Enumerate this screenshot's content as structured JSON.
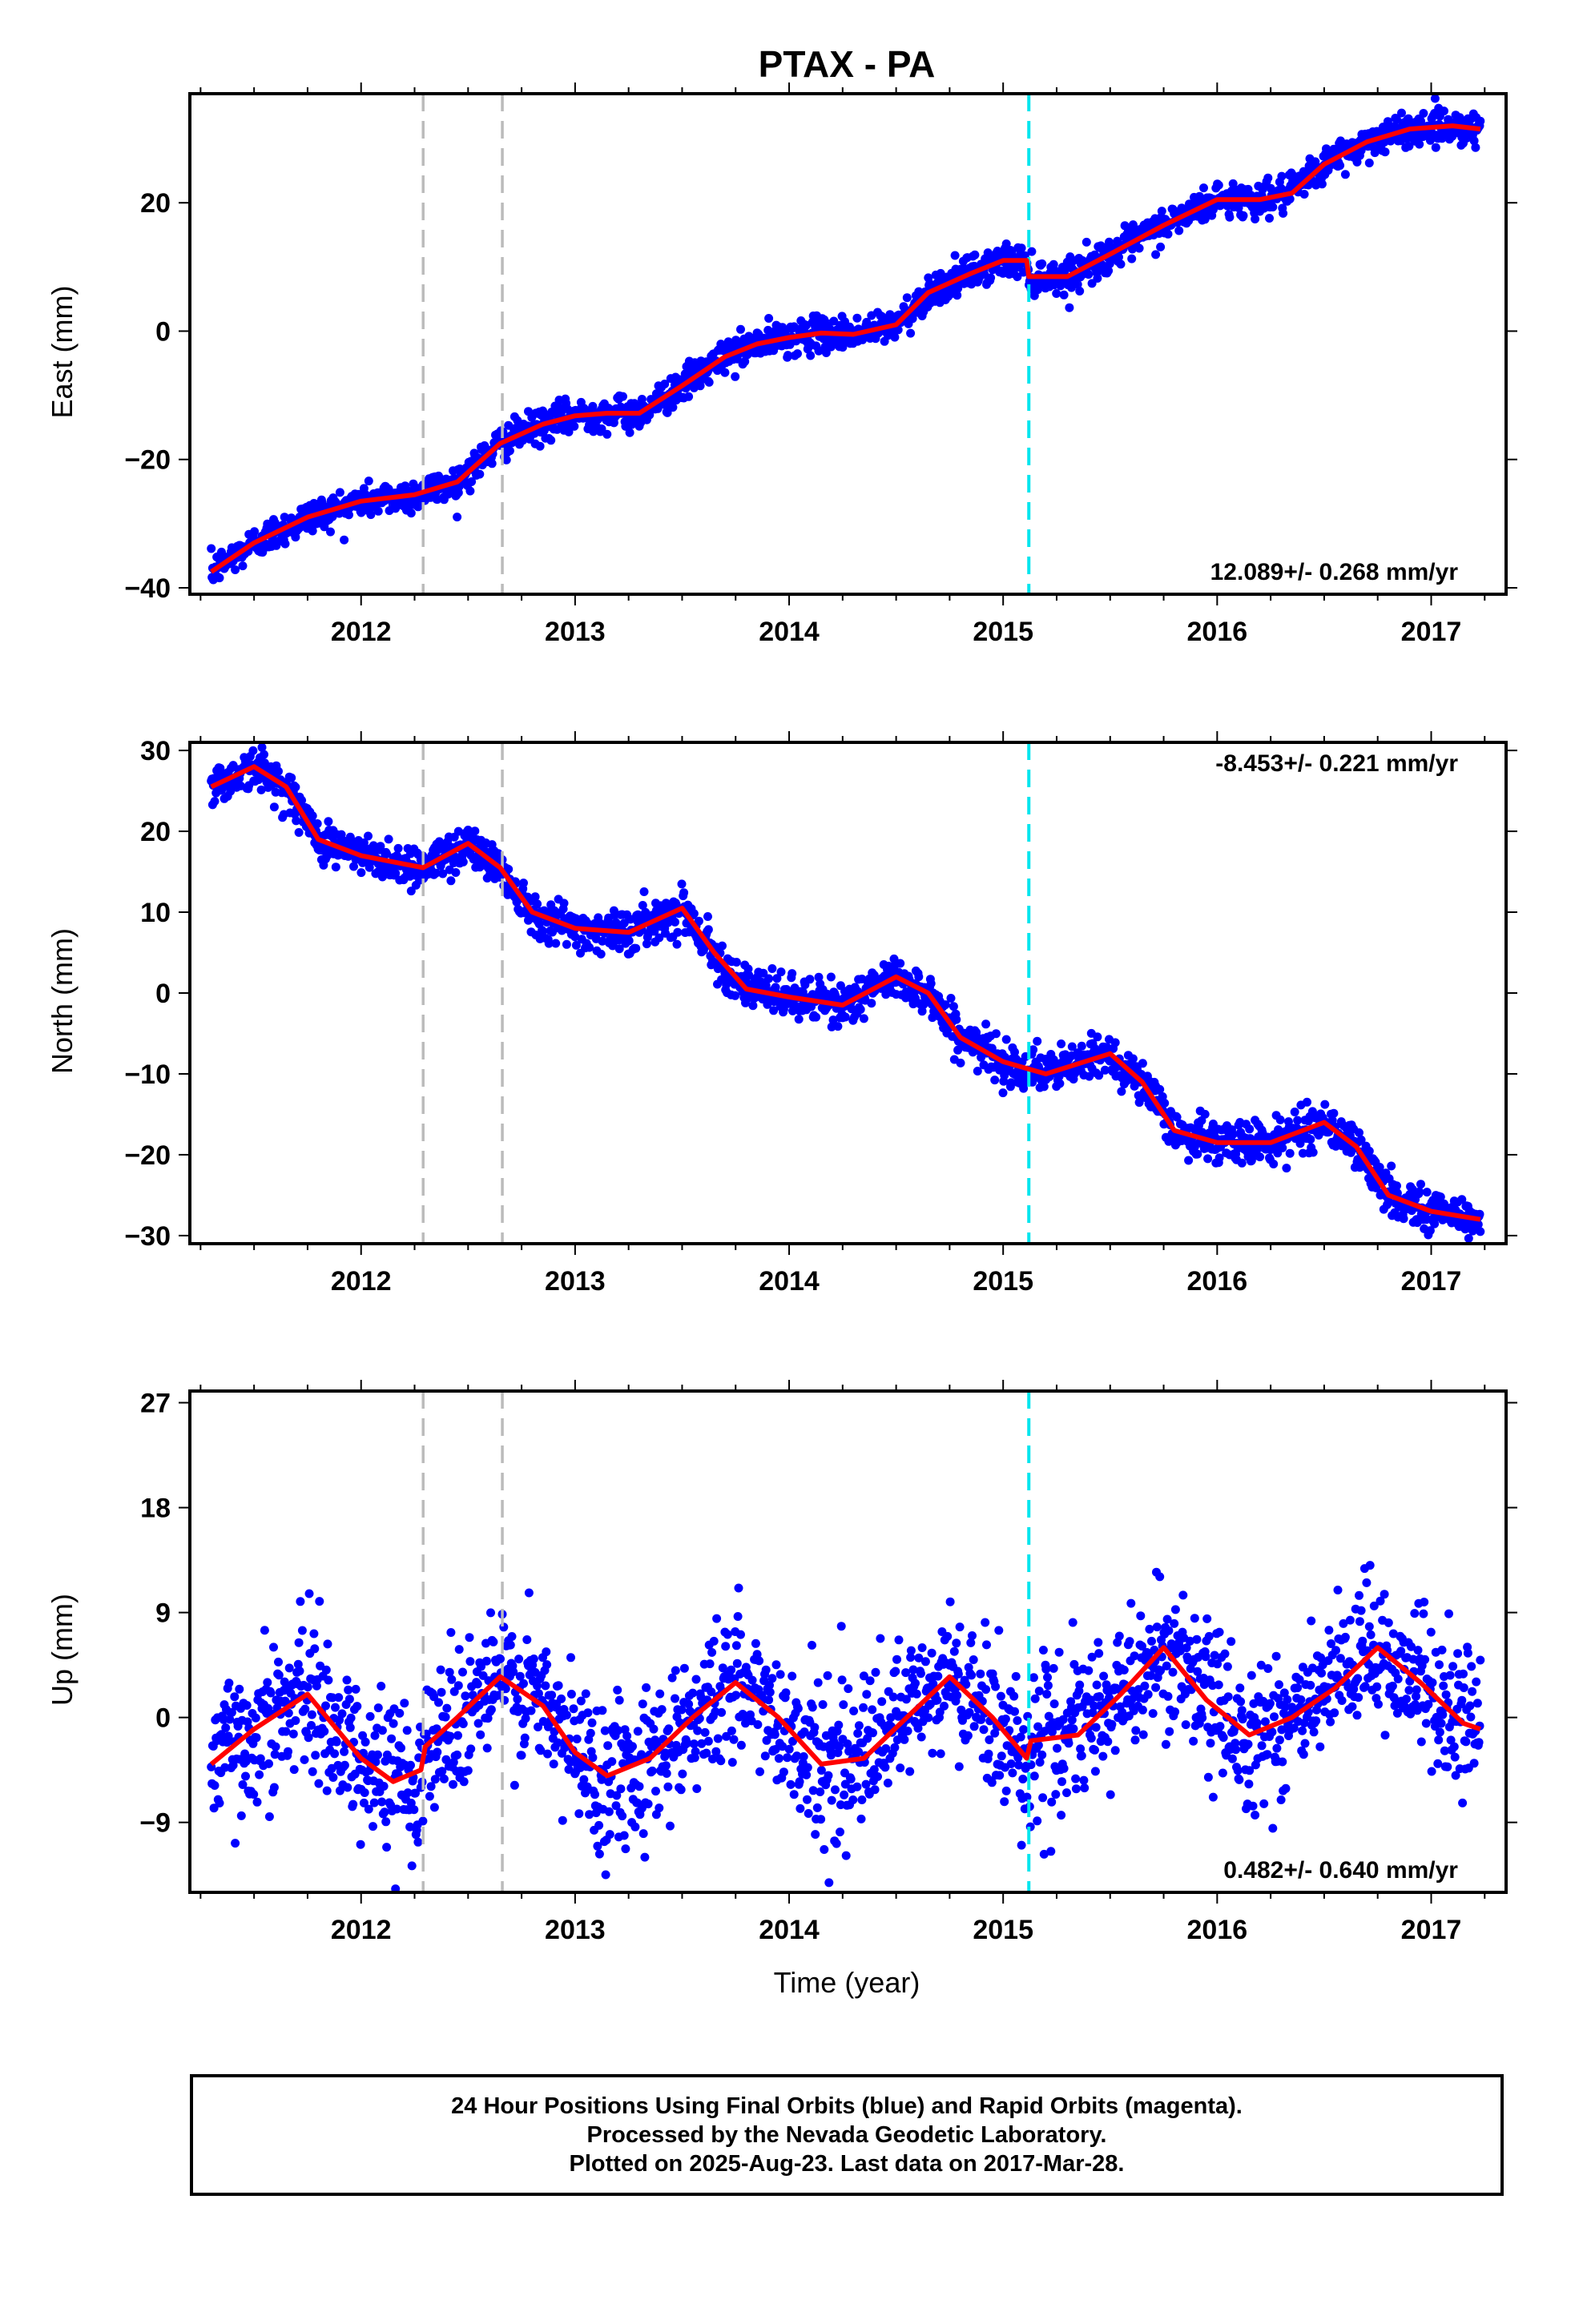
{
  "chart_data": {
    "type": "scatter",
    "title": "PTAX - PA",
    "xlabel": "Time (year)",
    "x_tick_labels": [
      "2012",
      "2013",
      "2014",
      "2015",
      "2016",
      "2017"
    ],
    "xlim": [
      2011.2,
      2017.35
    ],
    "vertical_lines": [
      {
        "x": 2012.29,
        "color": "#bbbbbb",
        "style": "dashed"
      },
      {
        "x": 2012.66,
        "color": "#bbbbbb",
        "style": "dashed"
      },
      {
        "x": 2015.12,
        "color": "#00e5ee",
        "style": "dashed"
      }
    ],
    "colors": {
      "points": "#0000ff",
      "fit": "#ff0000"
    },
    "panels": [
      {
        "name": "east",
        "ylabel": "East (mm)",
        "ylim": [
          -41,
          37
        ],
        "yticks": [
          -40,
          -20,
          0,
          20
        ],
        "rate_text": "12.089+/- 0.268 mm/yr",
        "rate_position": "bottom-right",
        "fit": {
          "x": [
            2011.3,
            2011.5,
            2011.75,
            2012.0,
            2012.25,
            2012.45,
            2012.65,
            2012.85,
            2013.0,
            2013.15,
            2013.3,
            2013.5,
            2013.7,
            2013.85,
            2014.0,
            2014.15,
            2014.3,
            2014.5,
            2014.65,
            2014.85,
            2015.0,
            2015.11,
            2015.12,
            2015.3,
            2015.5,
            2015.75,
            2016.0,
            2016.2,
            2016.35,
            2016.5,
            2016.7,
            2016.9,
            2017.1,
            2017.23
          ],
          "y": [
            -37.5,
            -33,
            -29,
            -26.5,
            -25.5,
            -23.5,
            -17.5,
            -14.5,
            -13.2,
            -12.8,
            -12.8,
            -8.5,
            -4,
            -2,
            -1,
            -0.3,
            -0.5,
            1,
            6,
            9,
            11,
            11,
            8.5,
            8.5,
            12,
            16.5,
            20.5,
            20.5,
            21.5,
            26,
            29.5,
            31.5,
            32,
            31.5
          ]
        }
      },
      {
        "name": "north",
        "ylabel": "North (mm)",
        "ylim": [
          -31,
          31
        ],
        "yticks": [
          -30,
          -20,
          -10,
          0,
          10,
          20,
          30
        ],
        "rate_text": "-8.453+/- 0.221 mm/yr",
        "rate_position": "top-right",
        "fit": {
          "x": [
            2011.3,
            2011.5,
            2011.65,
            2011.8,
            2012.0,
            2012.29,
            2012.5,
            2012.65,
            2012.8,
            2013.0,
            2013.25,
            2013.5,
            2013.65,
            2013.8,
            2014.0,
            2014.25,
            2014.5,
            2014.65,
            2014.8,
            2015.0,
            2015.2,
            2015.5,
            2015.65,
            2015.8,
            2016.0,
            2016.25,
            2016.5,
            2016.65,
            2016.8,
            2017.0,
            2017.23
          ],
          "y": [
            25.5,
            28,
            25.5,
            19,
            17,
            15.5,
            18.5,
            15.5,
            10,
            8,
            7.5,
            10.5,
            5,
            0.5,
            -0.5,
            -1.5,
            2,
            0,
            -5.5,
            -8.5,
            -10,
            -7.5,
            -11,
            -17,
            -18.5,
            -18.5,
            -16,
            -19,
            -25,
            -27,
            -28
          ]
        }
      },
      {
        "name": "up",
        "ylabel": "Up (mm)",
        "ylim": [
          -15,
          28
        ],
        "yticks": [
          -9,
          0,
          9,
          18,
          27
        ],
        "rate_text": "0.482+/- 0.640 mm/yr",
        "rate_position": "bottom-right",
        "fit": {
          "x": [
            2011.3,
            2011.5,
            2011.75,
            2012.0,
            2012.15,
            2012.28,
            2012.3,
            2012.45,
            2012.65,
            2012.85,
            2013.0,
            2013.15,
            2013.35,
            2013.55,
            2013.75,
            2013.95,
            2014.15,
            2014.35,
            2014.55,
            2014.75,
            2014.95,
            2015.11,
            2015.13,
            2015.35,
            2015.55,
            2015.75,
            2015.95,
            2016.15,
            2016.35,
            2016.55,
            2016.75,
            2016.95,
            2017.15,
            2017.23
          ],
          "y": [
            -4,
            -1,
            2,
            -3.5,
            -5.5,
            -4.5,
            -2.5,
            0,
            3.5,
            1,
            -3,
            -5,
            -3.5,
            0,
            3,
            0,
            -4,
            -3.5,
            0,
            3.5,
            0,
            -3.5,
            -2,
            -1.5,
            2,
            6,
            1.5,
            -1.5,
            0,
            2.5,
            6,
            3,
            -0.5,
            -1
          ]
        }
      }
    ]
  },
  "footer": {
    "line1": "24 Hour Positions Using Final Orbits (blue) and Rapid Orbits (magenta).",
    "line2": "Processed by the Nevada Geodetic Laboratory.",
    "line3": "Plotted on 2025-Aug-23. Last data on 2017-Mar-28."
  }
}
